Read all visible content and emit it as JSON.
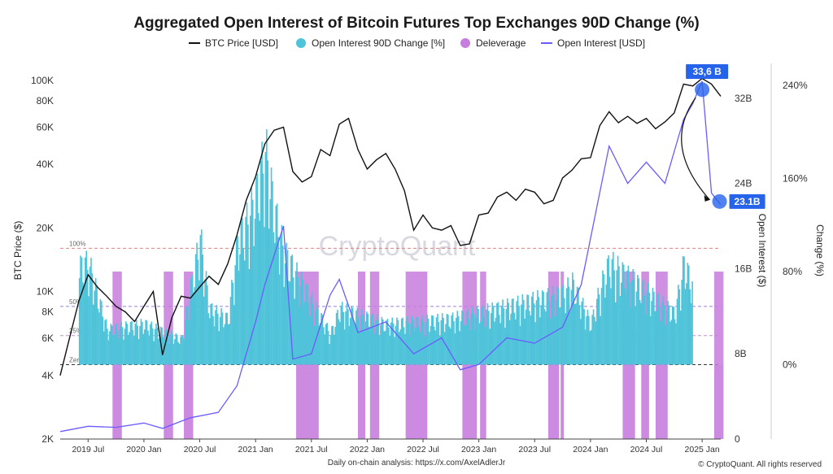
{
  "chart_data": {
    "type": "line",
    "title": "Aggregated Open Interest of Bitcoin Futures Top Exchanges 90D Change (%)",
    "watermark": "CryptoQuant",
    "footer_left": "Daily on-chain analysis: https://x.com/AxelAdlerJr",
    "footer_right": "© CryptoQuant. All rights reserved",
    "legend": [
      {
        "name": "BTC Price [USD]",
        "color": "#111111",
        "symbol": "line"
      },
      {
        "name": "Open Interest 90D Change [%]",
        "color": "#4fc3d9",
        "symbol": "dot"
      },
      {
        "name": "Deleverage",
        "color": "#c77ddd",
        "symbol": "dot"
      },
      {
        "name": "Open Interest [USD]",
        "color": "#6a5cff",
        "symbol": "line"
      }
    ],
    "left_axis": {
      "label": "BTC Price ($)",
      "scale": "log",
      "ticks": [
        {
          "label": "2K",
          "value": 2000
        },
        {
          "label": "4K",
          "value": 4000
        },
        {
          "label": "6K",
          "value": 6000
        },
        {
          "label": "8K",
          "value": 8000
        },
        {
          "label": "10K",
          "value": 10000
        },
        {
          "label": "20K",
          "value": 20000
        },
        {
          "label": "40K",
          "value": 40000
        },
        {
          "label": "60K",
          "value": 60000
        },
        {
          "label": "80K",
          "value": 80000
        },
        {
          "label": "100K",
          "value": 100000
        }
      ],
      "range": [
        2000,
        110000
      ]
    },
    "oi_axis": {
      "label": "Open Interest ($)",
      "ticks": [
        {
          "label": "0",
          "value": 0
        },
        {
          "label": "8B",
          "value": 8
        },
        {
          "label": "16B",
          "value": 16
        },
        {
          "label": "24B",
          "value": 24
        },
        {
          "label": "32B",
          "value": 32
        }
      ],
      "range": [
        0,
        34.5
      ]
    },
    "change_axis": {
      "label": "Change (%)",
      "ticks": [
        {
          "label": "0%",
          "value": 0
        },
        {
          "label": "80%",
          "value": 80
        },
        {
          "label": "160%",
          "value": 160
        },
        {
          "label": "240%",
          "value": 240
        }
      ],
      "range": [
        -64,
        252
      ]
    },
    "reference_lines": [
      {
        "label": "100%",
        "value": 100,
        "color": "#e08080"
      },
      {
        "label": "50%",
        "value": 50,
        "color": "#9b7fd6"
      },
      {
        "label": "25%",
        "value": 25,
        "color": "#c08fd0"
      },
      {
        "label": "Zero",
        "value": 0,
        "color": "#333333"
      }
    ],
    "x_axis": {
      "labels": [
        "2019 Jul",
        "2020 Jan",
        "2020 Jul",
        "2021 Jan",
        "2021 Jul",
        "2022 Jan",
        "2022 Jul",
        "2023 Jan",
        "2023 Jul",
        "2024 Jan",
        "2024 Jul",
        "2025 Jan"
      ],
      "start": "2019-04",
      "end": "2025-03"
    },
    "annotations": [
      {
        "label": "33,6 B",
        "date": "2025-01",
        "value_oi": 32.8,
        "color": "#2563eb"
      },
      {
        "label": "23.1B",
        "date": "2025-02",
        "value_oi": 22.3,
        "color": "#2563eb"
      }
    ],
    "btc_price": [
      [
        "2019-04",
        4000
      ],
      [
        "2019-05",
        6000
      ],
      [
        "2019-06",
        9000
      ],
      [
        "2019-07",
        12000
      ],
      [
        "2019-08",
        10500
      ],
      [
        "2019-09",
        9500
      ],
      [
        "2019-10",
        8500
      ],
      [
        "2019-11",
        8000
      ],
      [
        "2019-12",
        7200
      ],
      [
        "2020-01",
        8500
      ],
      [
        "2020-02",
        10000
      ],
      [
        "2020-03",
        5000
      ],
      [
        "2020-04",
        7500
      ],
      [
        "2020-05",
        9500
      ],
      [
        "2020-06",
        9300
      ],
      [
        "2020-07",
        10500
      ],
      [
        "2020-08",
        11800
      ],
      [
        "2020-09",
        10800
      ],
      [
        "2020-10",
        13500
      ],
      [
        "2020-11",
        18500
      ],
      [
        "2020-12",
        27000
      ],
      [
        "2021-01",
        35000
      ],
      [
        "2021-02",
        50000
      ],
      [
        "2021-03",
        58000
      ],
      [
        "2021-04",
        60000
      ],
      [
        "2021-05",
        37000
      ],
      [
        "2021-06",
        33000
      ],
      [
        "2021-07",
        35000
      ],
      [
        "2021-08",
        47000
      ],
      [
        "2021-09",
        44000
      ],
      [
        "2021-10",
        62000
      ],
      [
        "2021-11",
        66000
      ],
      [
        "2021-12",
        47000
      ],
      [
        "2022-01",
        38000
      ],
      [
        "2022-02",
        42000
      ],
      [
        "2022-03",
        45000
      ],
      [
        "2022-04",
        38000
      ],
      [
        "2022-05",
        30000
      ],
      [
        "2022-06",
        19500
      ],
      [
        "2022-07",
        23000
      ],
      [
        "2022-08",
        20000
      ],
      [
        "2022-09",
        19500
      ],
      [
        "2022-10",
        20500
      ],
      [
        "2022-11",
        16500
      ],
      [
        "2022-12",
        16800
      ],
      [
        "2023-01",
        23000
      ],
      [
        "2023-02",
        23500
      ],
      [
        "2023-03",
        28000
      ],
      [
        "2023-04",
        29500
      ],
      [
        "2023-05",
        27000
      ],
      [
        "2023-06",
        30500
      ],
      [
        "2023-07",
        29500
      ],
      [
        "2023-08",
        26000
      ],
      [
        "2023-09",
        27000
      ],
      [
        "2023-10",
        34500
      ],
      [
        "2023-11",
        37500
      ],
      [
        "2023-12",
        42500
      ],
      [
        "2024-01",
        43000
      ],
      [
        "2024-02",
        61000
      ],
      [
        "2024-03",
        71000
      ],
      [
        "2024-04",
        63000
      ],
      [
        "2024-05",
        67500
      ],
      [
        "2024-06",
        62500
      ],
      [
        "2024-07",
        66000
      ],
      [
        "2024-08",
        59000
      ],
      [
        "2024-09",
        63500
      ],
      [
        "2024-10",
        70000
      ],
      [
        "2024-11",
        96000
      ],
      [
        "2024-12",
        94000
      ],
      [
        "2025-01",
        102000
      ],
      [
        "2025-02",
        96000
      ],
      [
        "2025-03",
        84000
      ]
    ],
    "open_interest_b": [
      [
        "2019-04",
        0.7
      ],
      [
        "2019-07",
        1.2
      ],
      [
        "2019-10",
        1.1
      ],
      [
        "2020-01",
        1.5
      ],
      [
        "2020-03",
        1.0
      ],
      [
        "2020-06",
        2.0
      ],
      [
        "2020-09",
        2.5
      ],
      [
        "2020-11",
        5.0
      ],
      [
        "2021-01",
        11.0
      ],
      [
        "2021-02",
        14.5
      ],
      [
        "2021-04",
        20.0
      ],
      [
        "2021-05",
        7.5
      ],
      [
        "2021-07",
        8.0
      ],
      [
        "2021-09",
        13.5
      ],
      [
        "2021-10",
        15.0
      ],
      [
        "2021-12",
        10.0
      ],
      [
        "2022-03",
        11.0
      ],
      [
        "2022-06",
        8.0
      ],
      [
        "2022-09",
        9.5
      ],
      [
        "2022-11",
        6.5
      ],
      [
        "2023-01",
        7.0
      ],
      [
        "2023-04",
        9.5
      ],
      [
        "2023-07",
        9.0
      ],
      [
        "2023-10",
        10.5
      ],
      [
        "2023-12",
        14.5
      ],
      [
        "2024-03",
        27.5
      ],
      [
        "2024-05",
        24.0
      ],
      [
        "2024-07",
        26.0
      ],
      [
        "2024-09",
        24.0
      ],
      [
        "2024-11",
        30.0
      ],
      [
        "2024-12",
        31.5
      ],
      [
        "2025-01",
        33.6
      ],
      [
        "2025-02",
        23.1
      ],
      [
        "2025-03",
        22.0
      ]
    ],
    "oi_change_pct_peaks": [
      [
        "2019-06",
        95
      ],
      [
        "2019-07",
        100
      ],
      [
        "2019-09",
        35
      ],
      [
        "2020-01",
        40
      ],
      [
        "2020-05",
        25
      ],
      [
        "2020-07",
        125
      ],
      [
        "2020-08",
        55
      ],
      [
        "2020-10",
        45
      ],
      [
        "2020-11",
        120
      ],
      [
        "2020-12",
        140
      ],
      [
        "2021-01",
        165
      ],
      [
        "2021-02",
        210
      ],
      [
        "2021-03",
        150
      ],
      [
        "2021-04",
        110
      ],
      [
        "2021-09",
        30
      ],
      [
        "2021-10",
        55
      ],
      [
        "2022-03",
        40
      ],
      [
        "2022-10",
        45
      ],
      [
        "2023-03",
        55
      ],
      [
        "2023-10",
        70
      ],
      [
        "2023-11",
        80
      ],
      [
        "2024-01",
        40
      ],
      [
        "2024-02",
        75
      ],
      [
        "2024-03",
        100
      ],
      [
        "2024-10",
        50
      ],
      [
        "2024-11",
        100
      ],
      [
        "2024-12",
        75
      ]
    ],
    "deleverage_ranges": [
      [
        "2019-09-20",
        "2019-10-20"
      ],
      [
        "2020-03-05",
        "2020-04-05"
      ],
      [
        "2020-05-10",
        "2020-06-10"
      ],
      [
        "2021-05-12",
        "2021-07-25"
      ],
      [
        "2021-12-01",
        "2021-12-25"
      ],
      [
        "2022-01-10",
        "2022-02-10"
      ],
      [
        "2022-05-05",
        "2022-07-15"
      ],
      [
        "2022-11-08",
        "2022-12-25"
      ],
      [
        "2023-01-05",
        "2023-01-25"
      ],
      [
        "2023-08-15",
        "2023-09-20"
      ],
      [
        "2023-09-25",
        "2023-10-05"
      ],
      [
        "2024-04-15",
        "2024-05-25"
      ],
      [
        "2024-06-15",
        "2024-07-10"
      ],
      [
        "2024-08-01",
        "2024-09-10"
      ],
      [
        "2025-02-10",
        "2025-03-10"
      ]
    ]
  }
}
